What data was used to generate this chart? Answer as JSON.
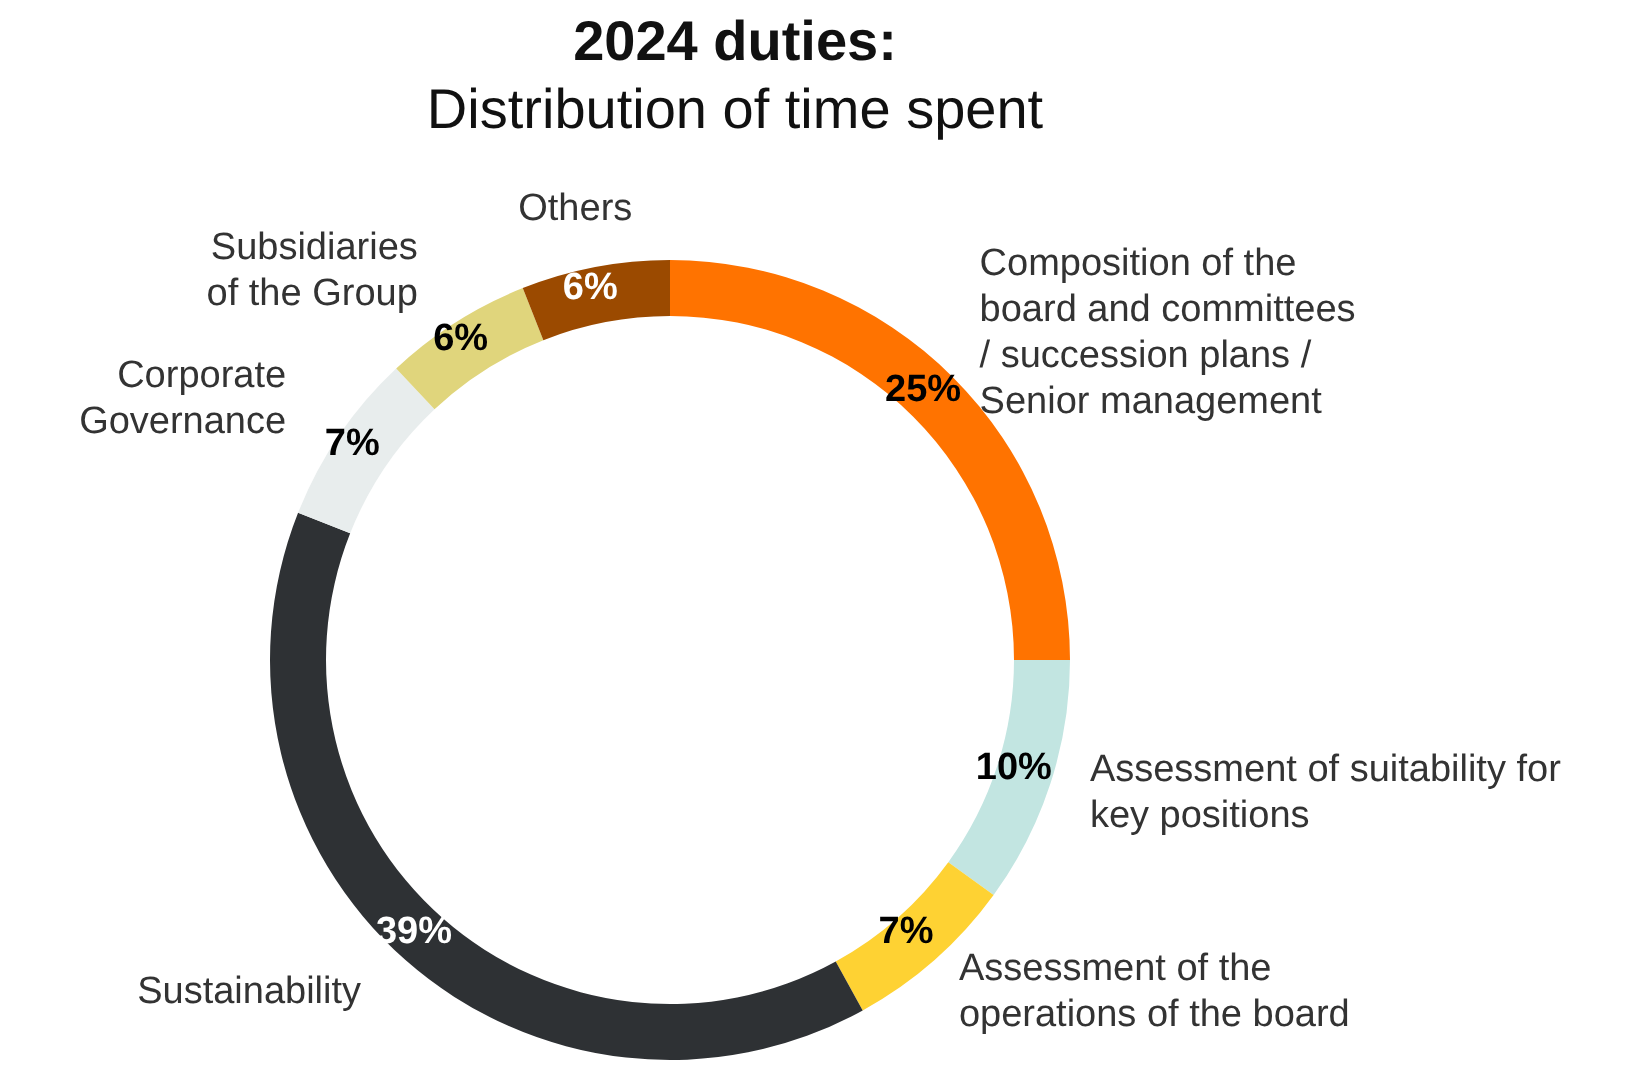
{
  "chart_data": {
    "type": "donut",
    "title": "2024 duties:",
    "subtitle": "Distribution of time spent",
    "categories": [
      "Composition of the\nboard and committees\n/ succession plans /\nSenior management",
      "Assessment of suitability for\nkey positions",
      "Assessment of the\noperations of the board",
      "Sustainability",
      "Corporate\nGovernance",
      "Subsidiaries\nof the Group",
      "Others"
    ],
    "values": [
      25,
      10,
      7,
      39,
      7,
      6,
      6
    ],
    "value_labels": [
      "25%",
      "10%",
      "7%",
      "39%",
      "7%",
      "6%",
      "6%"
    ],
    "colors": [
      "#ff7300",
      "#c2e5e1",
      "#fed233",
      "#2e3134",
      "#e8eded",
      "#e0d57c",
      "#9b4a00"
    ],
    "legend": false
  }
}
